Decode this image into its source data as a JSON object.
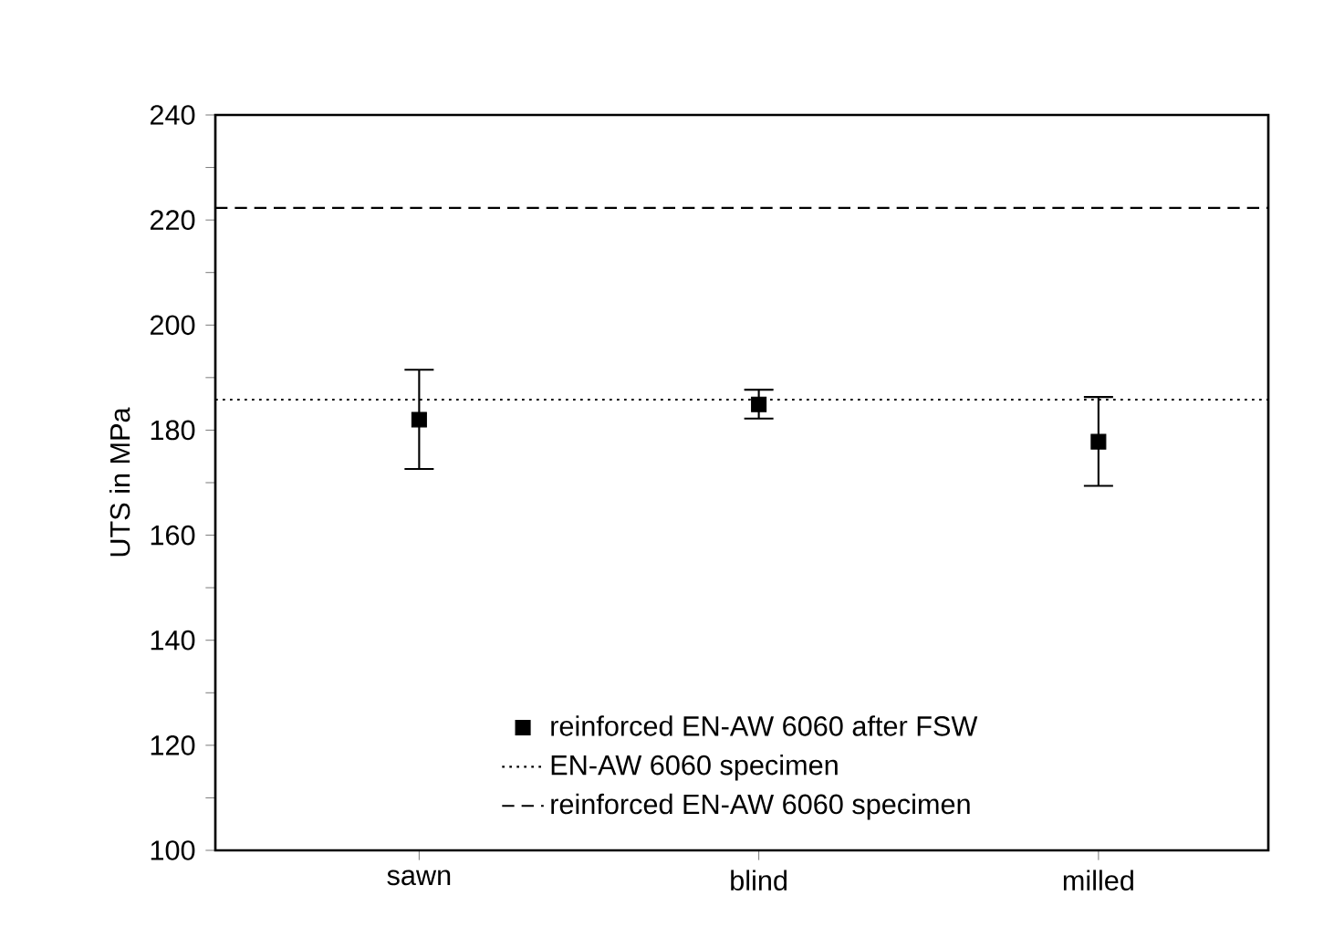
{
  "chart_data": {
    "type": "scatter",
    "ylabel": "UTS in MPa",
    "categories": [
      "sawn",
      "blind",
      "milled"
    ],
    "series": [
      {
        "name": "reinforced EN-AW 6060 after FSW",
        "color": "#000000",
        "values": [
          182.0,
          184.9,
          177.8
        ],
        "errors": [
          [
            172.6,
            191.5
          ],
          [
            182.2,
            187.7
          ],
          [
            169.4,
            186.3
          ]
        ]
      }
    ],
    "ref_lines": [
      {
        "axis": "y",
        "value": 185.8,
        "label": "EN-AW 6060 specimen",
        "line_style": "dotted",
        "color": "#000000"
      },
      {
        "axis": "y",
        "value": 222.3,
        "label": "reinforced EN-AW 6060 specimen",
        "line_style": "dashed",
        "color": "#000000"
      }
    ],
    "ylim": [
      100,
      240
    ],
    "yticks": [
      100,
      {
        "value": 110,
        "label": null
      },
      120,
      {
        "value": 130,
        "label": null
      },
      140,
      {
        "value": 150,
        "label": null
      },
      160,
      {
        "value": 170,
        "label": null
      },
      180,
      {
        "value": 190,
        "label": null
      },
      200,
      {
        "value": 210,
        "label": null
      },
      220,
      {
        "value": 230,
        "label": null
      },
      240
    ],
    "marker": "square",
    "legend": "bottom",
    "grid": false
  }
}
